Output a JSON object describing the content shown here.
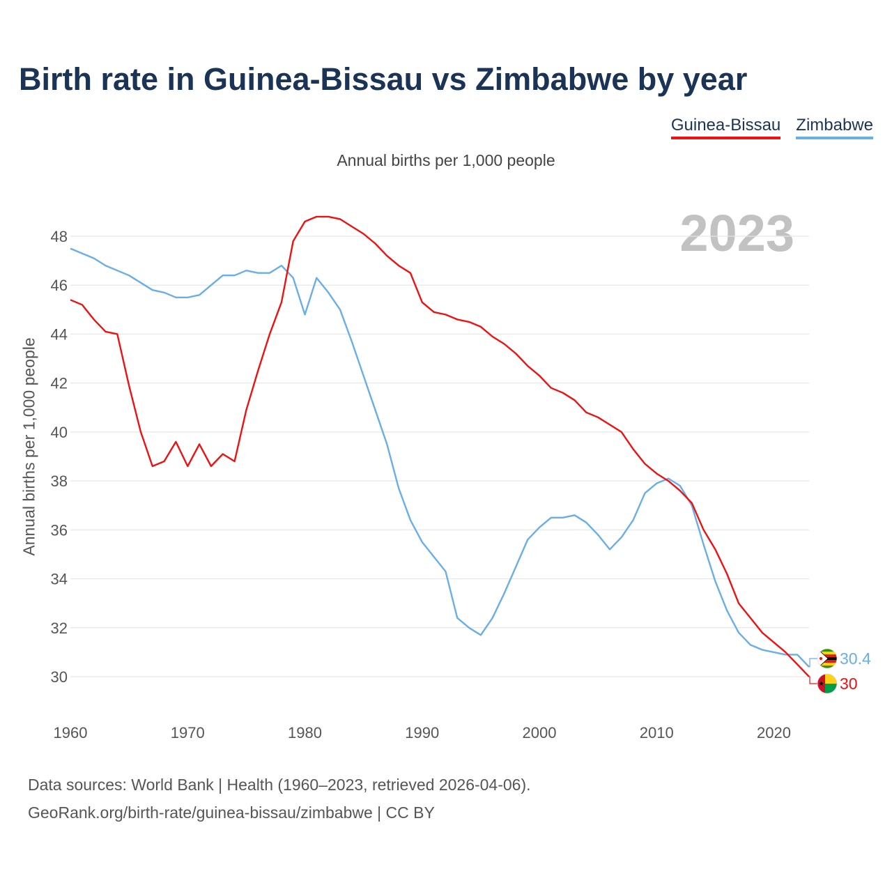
{
  "chart_data": {
    "type": "line",
    "title": "Birth rate in Guinea-Bissau vs Zimbabwe by year",
    "subtitle": "Annual births per 1,000 people",
    "ylabel": "Annual births per 1,000 people",
    "xlabel": "",
    "current_year": "2023",
    "x": [
      1960,
      1961,
      1962,
      1963,
      1964,
      1965,
      1966,
      1967,
      1968,
      1969,
      1970,
      1971,
      1972,
      1973,
      1974,
      1975,
      1976,
      1977,
      1978,
      1979,
      1980,
      1981,
      1982,
      1983,
      1984,
      1985,
      1986,
      1987,
      1988,
      1989,
      1990,
      1991,
      1992,
      1993,
      1994,
      1995,
      1996,
      1997,
      1998,
      1999,
      2000,
      2001,
      2002,
      2003,
      2004,
      2005,
      2006,
      2007,
      2008,
      2009,
      2010,
      2011,
      2012,
      2013,
      2014,
      2015,
      2016,
      2017,
      2018,
      2019,
      2020,
      2021,
      2022,
      2023
    ],
    "xlim": [
      1960,
      2023
    ],
    "ylim": [
      29,
      49.5
    ],
    "xticks": [
      1960,
      1970,
      1980,
      1990,
      2000,
      2010,
      2020
    ],
    "yticks": [
      30,
      32,
      34,
      36,
      38,
      40,
      42,
      44,
      46,
      48
    ],
    "grid": true,
    "legend_position": "top-right",
    "series": [
      {
        "name": "Guinea-Bissau",
        "color": "#ee1111",
        "end_label": "30",
        "flag": "guinea-bissau-flag",
        "values": [
          45.4,
          45.2,
          44.6,
          44.1,
          44.0,
          41.9,
          40.0,
          38.6,
          38.8,
          39.6,
          38.6,
          39.5,
          38.6,
          39.1,
          38.8,
          40.9,
          42.5,
          44.0,
          45.3,
          47.8,
          48.6,
          48.8,
          48.8,
          48.7,
          48.4,
          48.1,
          47.7,
          47.2,
          46.8,
          46.5,
          45.3,
          44.9,
          44.8,
          44.6,
          44.5,
          44.3,
          43.9,
          43.6,
          43.2,
          42.7,
          42.3,
          41.8,
          41.6,
          41.3,
          40.8,
          40.6,
          40.3,
          40.0,
          39.3,
          38.7,
          38.3,
          38.0,
          37.6,
          37.1,
          36.0,
          35.2,
          34.2,
          33.0,
          32.4,
          31.8,
          31.4,
          31.0,
          30.5,
          30.0
        ]
      },
      {
        "name": "Zimbabwe",
        "color": "#6aaee8",
        "end_label": "30.4",
        "flag": "zimbabwe-flag",
        "values": [
          47.5,
          47.3,
          47.1,
          46.8,
          46.6,
          46.4,
          46.1,
          45.8,
          45.7,
          45.5,
          45.5,
          45.6,
          46.0,
          46.4,
          46.4,
          46.6,
          46.5,
          46.5,
          46.8,
          46.3,
          44.8,
          46.3,
          45.7,
          45.0,
          43.7,
          42.3,
          40.9,
          39.5,
          37.7,
          36.4,
          35.5,
          34.9,
          34.3,
          32.4,
          32.0,
          31.7,
          32.4,
          33.4,
          34.5,
          35.6,
          36.1,
          36.5,
          36.5,
          36.6,
          36.3,
          35.8,
          35.2,
          35.7,
          36.4,
          37.5,
          37.9,
          38.1,
          37.8,
          37.0,
          35.4,
          33.9,
          32.7,
          31.8,
          31.3,
          31.1,
          31.0,
          30.9,
          30.9,
          30.4
        ]
      }
    ]
  },
  "footer": {
    "source_line1": "Data sources: World Bank | Health (1960–2023, retrieved 2026-04-06).",
    "source_line2": "GeoRank.org/birth-rate/guinea-bissau/zimbabwe | CC BY"
  }
}
